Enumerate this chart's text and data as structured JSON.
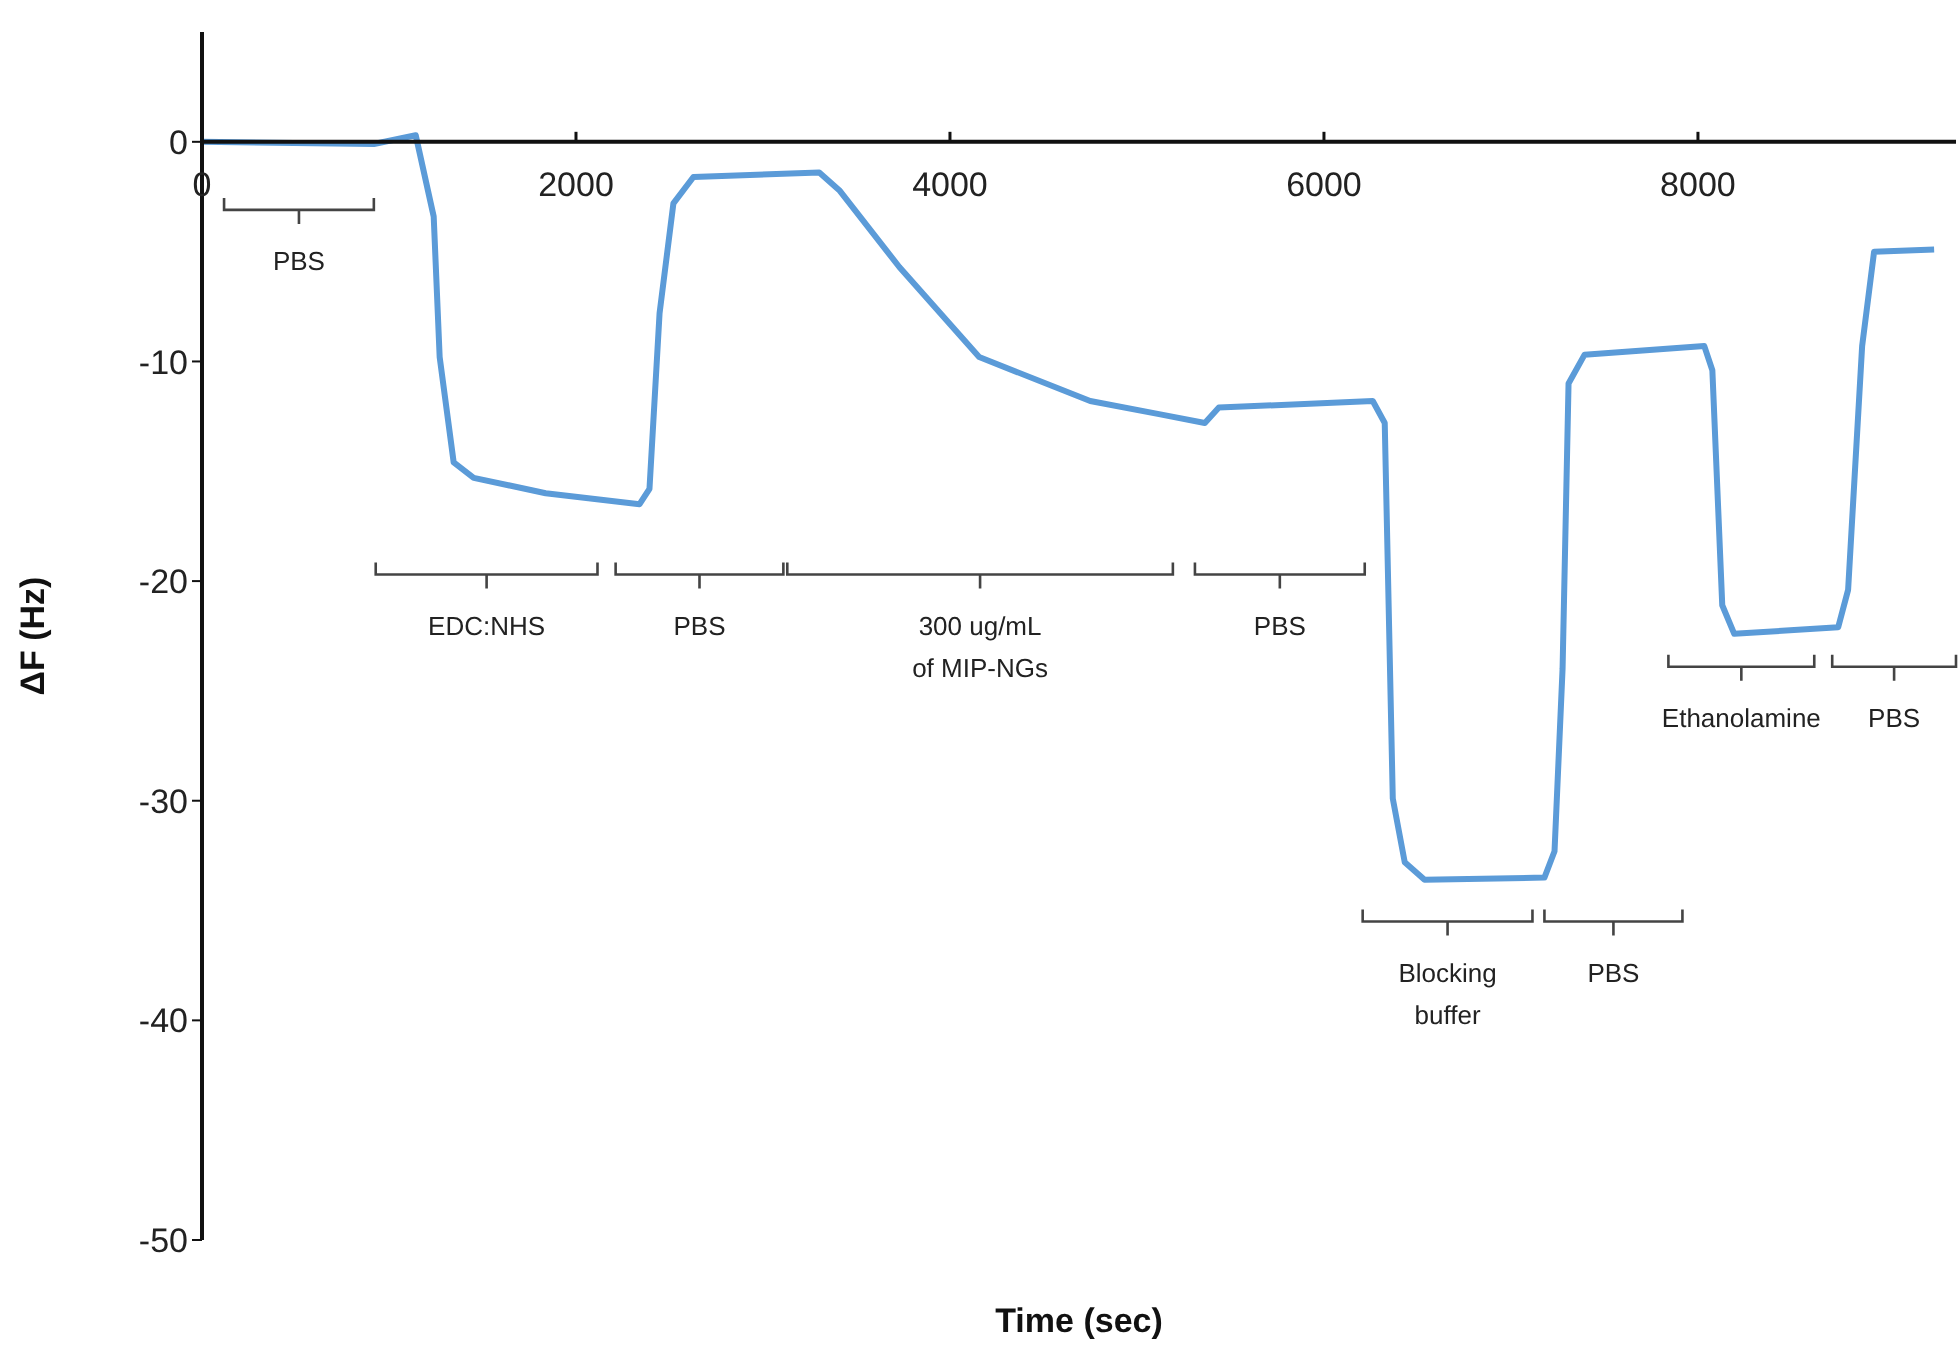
{
  "chart_data": {
    "type": "line",
    "xlabel": "Time (sec)",
    "ylabel": "ΔF (Hz)",
    "xlim": [
      0,
      9380
    ],
    "xticks": [
      0,
      2000,
      4000,
      6000,
      8000
    ],
    "ylim": [
      -50,
      5
    ],
    "yticks": [
      0,
      -10,
      -20,
      -30,
      -40,
      -50
    ],
    "line_style": "solid",
    "series": [
      {
        "color": "#5b9bd8",
        "x": [
          0,
          919,
          1143,
          1239,
          1271,
          1346,
          1453,
          1838,
          2340,
          2393,
          2447,
          2521,
          2628,
          3301,
          3408,
          3729,
          4156,
          4750,
          5118,
          5363,
          5438,
          6261,
          6325,
          6368,
          6432,
          6538,
          7179,
          7233,
          7276,
          7308,
          7393,
          8034,
          8077,
          8130,
          8194,
          8750,
          8803,
          8878,
          8942,
          9263
        ],
        "values": [
          0,
          -0.1,
          0.3,
          -3.4,
          -9.8,
          -14.6,
          -15.3,
          -16.0,
          -16.5,
          -15.8,
          -7.8,
          -2.8,
          -1.6,
          -1.4,
          -2.2,
          -5.7,
          -9.8,
          -11.8,
          -12.4,
          -12.8,
          -12.1,
          -11.8,
          -12.8,
          -29.9,
          -32.8,
          -33.6,
          -33.5,
          -32.3,
          -24,
          -11.0,
          -9.7,
          -9.3,
          -10.4,
          -21.1,
          -22.4,
          -22.1,
          -20.4,
          -9.3,
          -5.0,
          -4.9
        ]
      }
    ],
    "annotations": [
      "PBS",
      "EDC:NHS",
      "PBS",
      "300 ug/mL\nof MIP-NGs",
      "PBS",
      "Blocking\nbuffer",
      "PBS",
      "Ethanolamine",
      "PBS"
    ]
  }
}
